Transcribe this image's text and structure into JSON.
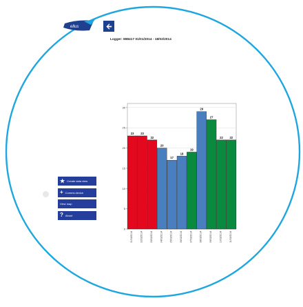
{
  "header": {
    "logger_text": "Logger: 888417 01/01/2014 - 18/02/2014",
    "back_icon": "arrow-left-icon"
  },
  "menu": {
    "items": [
      {
        "label": "Create data view",
        "icon": "star-icon"
      },
      {
        "label": "Comms device",
        "icon": "plus-icon"
      },
      {
        "label": "View map",
        "icon": ""
      },
      {
        "label": "About",
        "icon": "question-icon"
      }
    ]
  },
  "colors": {
    "accent": "#1da6df",
    "menu": "#253d9b",
    "red": "#e4081e",
    "blue": "#4a7fbf",
    "green": "#0a8a3e"
  },
  "chart_data": {
    "type": "bar",
    "title": "",
    "xlabel": "",
    "ylabel": "",
    "ylim": [
      0,
      31
    ],
    "yticks": [
      0,
      5,
      10,
      15,
      20,
      25,
      30
    ],
    "categories": [
      "01/02/2014",
      "02/02/2014",
      "03/02/2014",
      "04/02/2014",
      "05/02/2014",
      "06/02/2014",
      "07/02/2014",
      "08/02/2014",
      "09/02/2014",
      "10/02/2014",
      "11/02/2014"
    ],
    "values": [
      23,
      23,
      22,
      20,
      17,
      18,
      19,
      29,
      27,
      22,
      22
    ],
    "bar_colors": [
      "#e4081e",
      "#e4081e",
      "#e4081e",
      "#4a7fbf",
      "#4a7fbf",
      "#4a7fbf",
      "#0a8a3e",
      "#4a7fbf",
      "#0a8a3e",
      "#0a8a3e",
      "#0a8a3e"
    ],
    "grid": true
  }
}
